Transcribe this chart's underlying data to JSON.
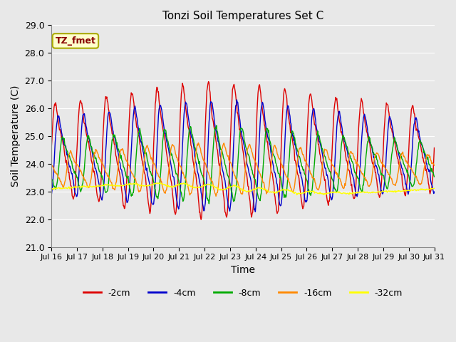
{
  "title": "Tonzi Soil Temperatures Set C",
  "xlabel": "Time",
  "ylabel": "Soil Temperature (C)",
  "ylim": [
    21.0,
    29.0
  ],
  "yticks": [
    21.0,
    22.0,
    23.0,
    24.0,
    25.0,
    26.0,
    27.0,
    28.0,
    29.0
  ],
  "xtick_labels": [
    "Jul 16",
    "Jul 17",
    "Jul 18",
    "Jul 19",
    "Jul 20",
    "Jul 21",
    "Jul 22",
    "Jul 23",
    "Jul 24",
    "Jul 25",
    "Jul 26",
    "Jul 27",
    "Jul 28",
    "Jul 29",
    "Jul 30",
    "Jul 31"
  ],
  "annotation_text": "TZ_fmet",
  "annotation_color": "#880000",
  "annotation_bg": "#ffffcc",
  "annotation_border": "#aaaa00",
  "colors": {
    "-2cm": "#dd0000",
    "-4cm": "#0000cc",
    "-8cm": "#00aa00",
    "-16cm": "#ff8800",
    "-32cm": "#ffff00"
  },
  "legend_labels": [
    "-2cm",
    "-4cm",
    "-8cm",
    "-16cm",
    "-32cm"
  ],
  "bg_color": "#e8e8e8",
  "plot_bg": "#e8e8e8",
  "grid_color": "#ffffff",
  "days": 15
}
